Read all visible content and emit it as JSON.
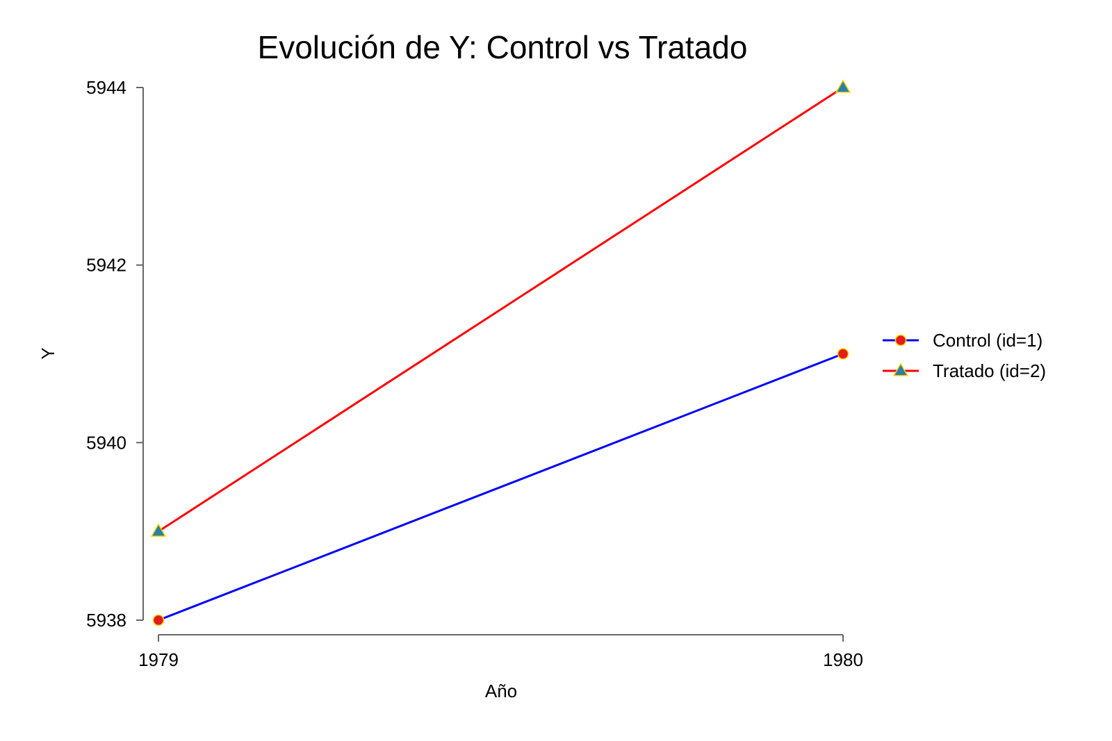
{
  "chart_data": {
    "type": "line",
    "title": "Evolución de Y: Control vs Tratado",
    "xlabel": "Año",
    "ylabel": "Y",
    "x": [
      1979,
      1980
    ],
    "x_ticks": [
      "1979",
      "1980"
    ],
    "y_ticks": [
      "5938",
      "5940",
      "5942",
      "5944"
    ],
    "ylim": [
      5938,
      5944
    ],
    "grid": false,
    "legend_position": "right",
    "series": [
      {
        "name": "Control (id=1)",
        "values": [
          5938,
          5941
        ],
        "color": "#0000ff",
        "marker": "circle",
        "marker_fill": "#e41a1c",
        "marker_edge": "#ffd700"
      },
      {
        "name": "Tratado (id=2)",
        "values": [
          5939,
          5944
        ],
        "color": "#ff0000",
        "marker": "triangle",
        "marker_fill": "#2b7fa8",
        "marker_edge": "#ffd700"
      }
    ]
  }
}
